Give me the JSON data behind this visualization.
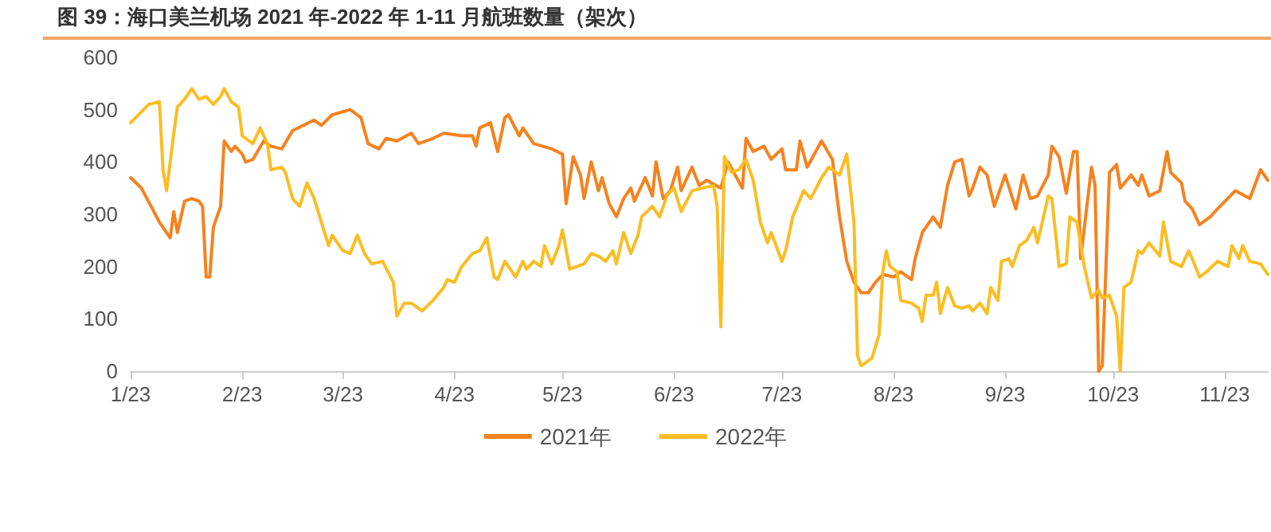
{
  "chart_data": {
    "type": "line",
    "title": "图 39：海口美兰机场 2021 年-2022 年 1-11 月航班数量（架次）",
    "xlim": [
      "--01-23",
      "--12-05"
    ],
    "xticks": [
      {
        "value": "--01-23",
        "label": "1/23"
      },
      {
        "value": "--02-23",
        "label": "2/23"
      },
      {
        "value": "--03-23",
        "label": "3/23"
      },
      {
        "value": "--04-23",
        "label": "4/23"
      },
      {
        "value": "--05-23",
        "label": "5/23"
      },
      {
        "value": "--06-23",
        "label": "6/23"
      },
      {
        "value": "--07-23",
        "label": "7/23"
      },
      {
        "value": "--08-23",
        "label": "8/23"
      },
      {
        "value": "--09-23",
        "label": "9/23"
      },
      {
        "value": "--10-23",
        "label": "10/23"
      },
      {
        "value": "--11-23",
        "label": "11/23"
      }
    ],
    "ylim": [
      0,
      600
    ],
    "yticks": [
      0,
      100,
      200,
      300,
      400,
      500,
      600
    ],
    "grid": false,
    "legend": "bottom",
    "marker": "none",
    "line_style": "solid",
    "series": [
      {
        "name": "2021年",
        "color": "#f5821f",
        "x": [
          "--01-23",
          "--01-26",
          "--01-31",
          "--02-03",
          "--02-04",
          "--02-05",
          "--02-07",
          "--02-09",
          "--02-11",
          "--02-12",
          "--02-13",
          "--02-14",
          "--02-15",
          "--02-17",
          "--02-18",
          "--02-20",
          "--02-21",
          "--02-23",
          "--02-24",
          "--02-26",
          "--03-01",
          "--03-03",
          "--03-06",
          "--03-09",
          "--03-12",
          "--03-15",
          "--03-17",
          "--03-20",
          "--03-25",
          "--03-28",
          "--03-30",
          "--04-02",
          "--04-04",
          "--04-07",
          "--04-11",
          "--04-13",
          "--04-17",
          "--04-20",
          "--04-25",
          "--04-28",
          "--04-29",
          "--04-30",
          "--05-03",
          "--05-05",
          "--05-07",
          "--05-08",
          "--05-11",
          "--05-12",
          "--05-15",
          "--05-20",
          "--05-23",
          "--05-24",
          "--05-26",
          "--05-28",
          "--05-29",
          "--05-31",
          "--06-02",
          "--06-03",
          "--06-05",
          "--06-07",
          "--06-09",
          "--06-11",
          "--06-12",
          "--06-15",
          "--06-17",
          "--06-18",
          "--06-20",
          "--06-22",
          "--06-24",
          "--06-25",
          "--06-28",
          "--06-30",
          "--07-02",
          "--07-06",
          "--07-08",
          "--07-10",
          "--07-12",
          "--07-13",
          "--07-15",
          "--07-18",
          "--07-20",
          "--07-23",
          "--07-24",
          "--07-27",
          "--07-28",
          "--07-30",
          "--08-03",
          "--08-06",
          "--08-08",
          "--08-10",
          "--08-12",
          "--08-14",
          "--08-16",
          "--08-18",
          "--08-20",
          "--08-23",
          "--08-25",
          "--08-28",
          "--08-29",
          "--08-31",
          "--09-03",
          "--09-05",
          "--09-07",
          "--09-09",
          "--09-11",
          "--09-13",
          "--09-14",
          "--09-16",
          "--09-18",
          "--09-20",
          "--09-23",
          "--09-26",
          "--09-28",
          "--09-30",
          "--10-02",
          "--10-05",
          "--10-06",
          "--10-08",
          "--10-10",
          "--10-12",
          "--10-13",
          "--10-14",
          "--10-17",
          "--10-18",
          "--10-19",
          "--10-20",
          "--10-22",
          "--10-24",
          "--10-25",
          "--10-28",
          "--10-30",
          "--10-31",
          "--11-02",
          "--11-05",
          "--11-07",
          "--11-08",
          "--11-11",
          "--11-12",
          "--11-14",
          "--11-16",
          "--11-19",
          "--11-21",
          "--11-26",
          "--11-30",
          "--12-03",
          "--12-05"
        ],
        "values": [
          370,
          350,
          285,
          255,
          305,
          265,
          325,
          330,
          325,
          315,
          180,
          180,
          275,
          315,
          440,
          420,
          430,
          415,
          400,
          405,
          440,
          430,
          425,
          460,
          470,
          480,
          470,
          490,
          500,
          485,
          435,
          425,
          445,
          440,
          455,
          435,
          445,
          455,
          450,
          450,
          430,
          465,
          475,
          420,
          485,
          490,
          450,
          465,
          435,
          425,
          415,
          320,
          410,
          375,
          330,
          400,
          345,
          370,
          320,
          295,
          330,
          350,
          325,
          370,
          335,
          400,
          330,
          345,
          390,
          345,
          390,
          355,
          365,
          350,
          400,
          375,
          350,
          445,
          420,
          430,
          405,
          425,
          385,
          385,
          440,
          390,
          440,
          405,
          295,
          210,
          170,
          150,
          150,
          170,
          185,
          180,
          190,
          175,
          215,
          265,
          295,
          275,
          355,
          400,
          405,
          335,
          350,
          390,
          375,
          315,
          375,
          310,
          375,
          330,
          335,
          375,
          430,
          410,
          340,
          420,
          420,
          215,
          390,
          355,
          0,
          10,
          380,
          395,
          350,
          375,
          355,
          375,
          335,
          345,
          420,
          380,
          360,
          325,
          310,
          280,
          295,
          310,
          345,
          330,
          385,
          365
        ]
      },
      {
        "name": "2022年",
        "color": "#fbbd23",
        "x": [
          "--01-23",
          "--01-28",
          "--01-31",
          "--02-01",
          "--02-02",
          "--02-04",
          "--02-05",
          "--02-07",
          "--02-09",
          "--02-11",
          "--02-13",
          "--02-15",
          "--02-17",
          "--02-18",
          "--02-20",
          "--02-22",
          "--02-23",
          "--02-26",
          "--02-28",
          "--03-02",
          "--03-03",
          "--03-06",
          "--03-07",
          "--03-09",
          "--03-11",
          "--03-13",
          "--03-15",
          "--03-17",
          "--03-19",
          "--03-20",
          "--03-23",
          "--03-25",
          "--03-27",
          "--03-29",
          "--03-31",
          "--04-03",
          "--04-06",
          "--04-07",
          "--04-09",
          "--04-11",
          "--04-14",
          "--04-17",
          "--04-20",
          "--04-21",
          "--04-23",
          "--04-25",
          "--04-28",
          "--04-30",
          "--05-02",
          "--05-04",
          "--05-05",
          "--05-07",
          "--05-10",
          "--05-12",
          "--05-13",
          "--05-15",
          "--05-17",
          "--05-18",
          "--05-20",
          "--05-22",
          "--05-23",
          "--05-25",
          "--05-29",
          "--05-31",
          "--06-02",
          "--06-04",
          "--06-06",
          "--06-07",
          "--06-09",
          "--06-11",
          "--06-13",
          "--06-14",
          "--06-17",
          "--06-19",
          "--06-21",
          "--06-23",
          "--06-25",
          "--06-28",
          "--07-01",
          "--07-04",
          "--07-05",
          "--07-06",
          "--07-07",
          "--07-09",
          "--07-11",
          "--07-13",
          "--07-15",
          "--07-17",
          "--07-19",
          "--07-20",
          "--07-23",
          "--07-24",
          "--07-26",
          "--07-29",
          "--07-31",
          "--08-03",
          "--08-05",
          "--08-08",
          "--08-10",
          "--08-12",
          "--08-13",
          "--08-14",
          "--08-17",
          "--08-19",
          "--08-20",
          "--08-21",
          "--08-22",
          "--08-24",
          "--08-25",
          "--08-28",
          "--08-30",
          "--08-31",
          "--09-01",
          "--09-03",
          "--09-04",
          "--09-05",
          "--09-07",
          "--09-09",
          "--09-11",
          "--09-13",
          "--09-14",
          "--09-16",
          "--09-18",
          "--09-19",
          "--09-21",
          "--09-22",
          "--09-24",
          "--09-25",
          "--09-27",
          "--09-29",
          "--10-01",
          "--10-02",
          "--10-05",
          "--10-06",
          "--10-08",
          "--10-10",
          "--10-11",
          "--10-13",
          "--10-15",
          "--10-17",
          "--10-19",
          "--10-20",
          "--10-22",
          "--10-24",
          "--10-25",
          "--10-26",
          "--10-28",
          "--10-30",
          "--10-31",
          "--11-02",
          "--11-05",
          "--11-06",
          "--11-08",
          "--11-11",
          "--11-13",
          "--11-14",
          "--11-16",
          "--11-18",
          "--11-21",
          "--11-24",
          "--11-25",
          "--11-27",
          "--11-28",
          "--11-30",
          "--12-03",
          "--12-05"
        ],
        "values": [
          475,
          510,
          515,
          385,
          345,
          455,
          505,
          520,
          540,
          520,
          525,
          510,
          525,
          540,
          515,
          505,
          450,
          435,
          465,
          435,
          385,
          390,
          380,
          330,
          315,
          360,
          330,
          285,
          240,
          260,
          230,
          225,
          260,
          225,
          205,
          210,
          170,
          105,
          130,
          130,
          115,
          135,
          160,
          175,
          170,
          200,
          225,
          230,
          255,
          180,
          175,
          210,
          180,
          210,
          195,
          210,
          200,
          240,
          205,
          240,
          270,
          195,
          205,
          225,
          220,
          210,
          230,
          205,
          265,
          225,
          260,
          295,
          315,
          295,
          335,
          350,
          305,
          345,
          350,
          355,
          315,
          85,
          410,
          380,
          385,
          405,
          365,
          285,
          245,
          265,
          210,
          230,
          295,
          345,
          330,
          370,
          390,
          375,
          415,
          285,
          30,
          10,
          25,
          70,
          190,
          230,
          200,
          190,
          135,
          130,
          120,
          95,
          145,
          145,
          170,
          110,
          160,
          125,
          120,
          125,
          115,
          130,
          110,
          160,
          135,
          210,
          215,
          200,
          240,
          250,
          275,
          245,
          335,
          330,
          200,
          205,
          295,
          285,
          200,
          140,
          155,
          140,
          145,
          105,
          0,
          160,
          170,
          230,
          225,
          245,
          220,
          285,
          210,
          200,
          230,
          215,
          180,
          190,
          210,
          200,
          240,
          215,
          240,
          210,
          205,
          185
        ]
      }
    ]
  }
}
